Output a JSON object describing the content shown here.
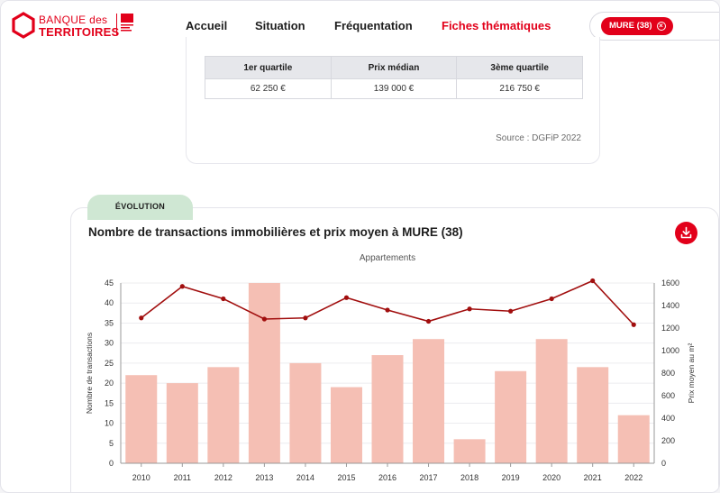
{
  "header": {
    "logo_line1": "BANQUE des",
    "logo_line2": "TERRITOIRES",
    "nav": [
      "Accueil",
      "Situation",
      "Fréquentation",
      "Fiches thématiques"
    ],
    "active_nav": "Fiches thématiques",
    "commune_chip": "MURE (38)"
  },
  "quartiles": {
    "headers": [
      "1er quartile",
      "Prix médian",
      "3ème quartile"
    ],
    "values": [
      "62 250 €",
      "139 000 €",
      "216 750 €"
    ],
    "source": "Source : DGFiP 2022"
  },
  "section_tab": "ÉVOLUTION",
  "chart_data": {
    "type": "bar",
    "title": "Nombre de transactions immobilières et prix moyen à MURE (38)",
    "subtitle": "Appartements",
    "categories": [
      "2010",
      "2011",
      "2012",
      "2013",
      "2014",
      "2015",
      "2016",
      "2017",
      "2018",
      "2019",
      "2020",
      "2021",
      "2022"
    ],
    "series": [
      {
        "type": "bar",
        "axis": "left",
        "values": [
          22,
          20,
          24,
          45,
          25,
          19,
          27,
          31,
          6,
          23,
          31,
          24,
          12
        ],
        "color": "#f5bfb4"
      },
      {
        "type": "line",
        "axis": "right",
        "values": [
          1290,
          1570,
          1460,
          1280,
          1290,
          1470,
          1360,
          1260,
          1370,
          1350,
          1460,
          1620,
          1230
        ],
        "color": "#a10e0e"
      }
    ],
    "ylabel": "Nombre de transactions",
    "ylabel_right": "Prix moyen au m²",
    "ylim": [
      0,
      45
    ],
    "ylim_right": [
      0,
      1600
    ],
    "yticks": [
      0,
      5,
      10,
      15,
      20,
      25,
      30,
      35,
      40,
      45
    ],
    "yticks_right": [
      0,
      200,
      400,
      600,
      800,
      1000,
      1200,
      1400,
      1600
    ],
    "grid": true
  }
}
